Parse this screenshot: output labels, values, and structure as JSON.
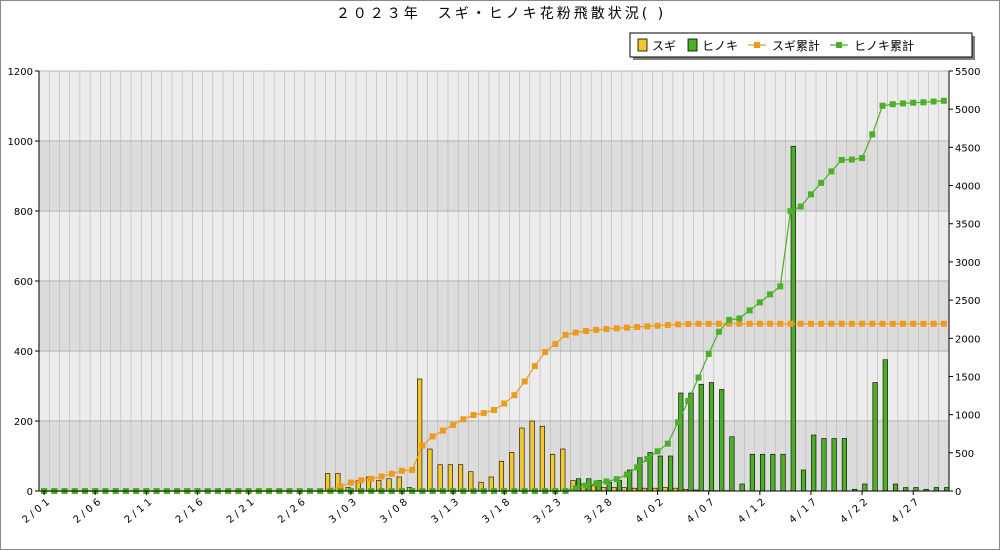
{
  "chart_data": {
    "type": "bar",
    "title": "２０２３年　スギ・ヒノキ花粉飛散状況( )",
    "xlabel": "",
    "ylabel": "",
    "ylim": [
      0,
      1200
    ],
    "y2lim": [
      0,
      5500
    ],
    "yticks": [
      0,
      200,
      400,
      600,
      800,
      1000,
      1200
    ],
    "y2ticks": [
      0,
      500,
      1000,
      1500,
      2000,
      2500,
      3000,
      3500,
      4000,
      4500,
      5000,
      5500
    ],
    "grid": true,
    "legend_position": "top-right",
    "x_tick_labels": [
      "2/01",
      "2/06",
      "2/11",
      "2/16",
      "2/21",
      "2/26",
      "3/03",
      "3/08",
      "3/13",
      "3/18",
      "3/23",
      "3/28",
      "4/02",
      "4/07",
      "4/12",
      "4/17",
      "4/22",
      "4/27"
    ],
    "categories": [
      "2/01",
      "2/02",
      "2/03",
      "2/04",
      "2/05",
      "2/06",
      "2/07",
      "2/08",
      "2/09",
      "2/10",
      "2/11",
      "2/12",
      "2/13",
      "2/14",
      "2/15",
      "2/16",
      "2/17",
      "2/18",
      "2/19",
      "2/20",
      "2/21",
      "2/22",
      "2/23",
      "2/24",
      "2/25",
      "2/26",
      "2/27",
      "2/28",
      "3/01",
      "3/02",
      "3/03",
      "3/04",
      "3/05",
      "3/06",
      "3/07",
      "3/08",
      "3/09",
      "3/10",
      "3/11",
      "3/12",
      "3/13",
      "3/14",
      "3/15",
      "3/16",
      "3/17",
      "3/18",
      "3/19",
      "3/20",
      "3/21",
      "3/22",
      "3/23",
      "3/24",
      "3/25",
      "3/26",
      "3/27",
      "3/28",
      "3/29",
      "3/30",
      "3/31",
      "4/01",
      "4/02",
      "4/03",
      "4/04",
      "4/05",
      "4/06",
      "4/07",
      "4/08",
      "4/09",
      "4/10",
      "4/11",
      "4/12",
      "4/13",
      "4/14",
      "4/15",
      "4/16",
      "4/17",
      "4/18",
      "4/19",
      "4/20",
      "4/21",
      "4/22",
      "4/23",
      "4/24",
      "4/25",
      "4/26",
      "4/27",
      "4/28",
      "4/29",
      "4/30"
    ],
    "series": [
      {
        "name": "スギ",
        "kind": "bar",
        "axis": "left",
        "color": "#f2c82e",
        "values": [
          0,
          0,
          0,
          0,
          0,
          0,
          0,
          0,
          0,
          0,
          0,
          0,
          0,
          0,
          0,
          0,
          0,
          0,
          0,
          0,
          0,
          0,
          0,
          0,
          0,
          0,
          0,
          0,
          50,
          50,
          10,
          30,
          40,
          30,
          35,
          40,
          10,
          320,
          120,
          75,
          75,
          75,
          55,
          25,
          40,
          85,
          110,
          180,
          200,
          185,
          105,
          120,
          30,
          20,
          15,
          10,
          10,
          10,
          8,
          8,
          8,
          10,
          8,
          5,
          3,
          1,
          1,
          1,
          0,
          0,
          0,
          0,
          0,
          0,
          0,
          0,
          0,
          0,
          0,
          0,
          0,
          0,
          0,
          0,
          0,
          0,
          0,
          0,
          0
        ]
      },
      {
        "name": "ヒノキ",
        "kind": "bar",
        "axis": "left",
        "color": "#4caf28",
        "values": [
          0,
          0,
          0,
          0,
          0,
          0,
          0,
          0,
          0,
          0,
          0,
          0,
          0,
          0,
          0,
          0,
          0,
          0,
          0,
          0,
          0,
          0,
          0,
          0,
          0,
          0,
          0,
          0,
          0,
          0,
          0,
          0,
          0,
          0,
          0,
          0,
          0,
          0,
          0,
          0,
          0,
          0,
          0,
          0,
          0,
          0,
          0,
          0,
          0,
          0,
          0,
          0,
          35,
          35,
          30,
          25,
          30,
          60,
          95,
          110,
          100,
          100,
          280,
          280,
          305,
          310,
          290,
          155,
          20,
          105,
          105,
          105,
          105,
          985,
          60,
          160,
          150,
          150,
          150,
          5,
          20,
          310,
          375,
          20,
          10,
          10,
          5,
          10,
          10
        ]
      },
      {
        "name": "スギ累計",
        "kind": "line",
        "axis": "right",
        "color": "#ee9a1d",
        "values": [
          0,
          0,
          0,
          0,
          0,
          0,
          0,
          0,
          0,
          0,
          0,
          0,
          0,
          0,
          0,
          0,
          0,
          0,
          0,
          0,
          0,
          0,
          0,
          0,
          0,
          0,
          0,
          0,
          10,
          60,
          110,
          140,
          160,
          190,
          225,
          265,
          275,
          595,
          715,
          790,
          865,
          940,
          995,
          1020,
          1060,
          1145,
          1255,
          1435,
          1635,
          1820,
          1925,
          2045,
          2075,
          2095,
          2110,
          2120,
          2130,
          2140,
          2148,
          2156,
          2164,
          2174,
          2182,
          2187,
          2190,
          2190,
          2190,
          2190,
          2190,
          2190,
          2190,
          2190,
          2190,
          2190,
          2190,
          2190,
          2190,
          2190,
          2190,
          2190,
          2190,
          2190,
          2190,
          2190,
          2190,
          2190,
          2190,
          2190,
          2190
        ]
      },
      {
        "name": "ヒノキ累計",
        "kind": "line",
        "axis": "right",
        "color": "#4caf28",
        "values": [
          0,
          0,
          0,
          0,
          0,
          0,
          0,
          0,
          0,
          0,
          0,
          0,
          0,
          0,
          0,
          0,
          0,
          0,
          0,
          0,
          0,
          0,
          0,
          0,
          0,
          0,
          0,
          0,
          0,
          0,
          0,
          0,
          0,
          0,
          0,
          0,
          0,
          0,
          0,
          0,
          0,
          0,
          0,
          0,
          0,
          0,
          0,
          0,
          0,
          0,
          0,
          0,
          35,
          70,
          100,
          125,
          155,
          215,
          310,
          420,
          520,
          620,
          900,
          1180,
          1485,
          1795,
          2085,
          2240,
          2260,
          2365,
          2470,
          2575,
          2680,
          3665,
          3725,
          3885,
          4035,
          4185,
          4335,
          4340,
          4360,
          4670,
          5045,
          5065,
          5075,
          5085,
          5090,
          5100,
          5110
        ]
      }
    ]
  },
  "colors": {
    "band_dark": "#dcdcdc",
    "band_light": "#ececec",
    "grid": "#b4b4b4",
    "axis": "#000000",
    "legend_bg": "#ffffff",
    "legend_shadow": "#808080"
  }
}
